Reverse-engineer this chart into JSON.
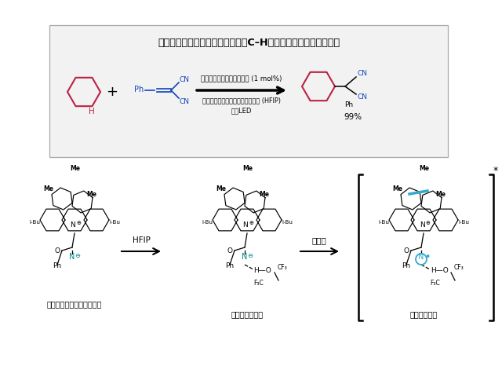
{
  "bg": "#ffffff",
  "box_face": "#f2f2f2",
  "box_edge": "#aaaaaa",
  "title": "様々な灰化水素化合物の直接的なC–H結合変換を高い效率で実現",
  "cond1": "アクリジニウムアミデート (1 mol%)",
  "cond2": "ヘキサフルオロイソプロパノール (HFIP)",
  "cond3": "青色LED",
  "yield_pct": "99%",
  "label1": "アクリジニウムアミデート",
  "label2": "水素結合の形成",
  "label3": "三重項励起種",
  "arrow1_lbl": "HFIP",
  "arrow2_lbl": "青色光",
  "star": "*",
  "red": "#bb2244",
  "blue": "#1144bb",
  "cyan": "#33aacc",
  "teal": "#008888"
}
